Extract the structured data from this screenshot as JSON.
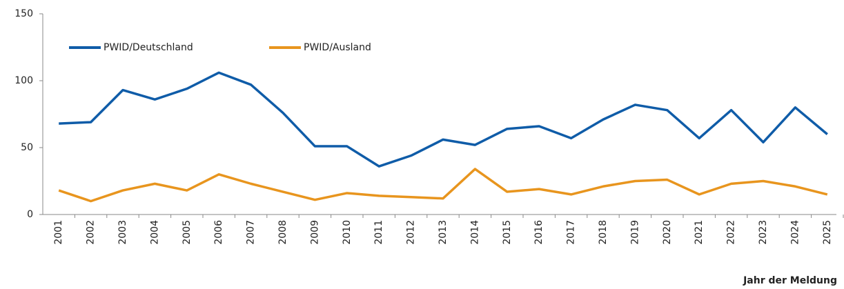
{
  "chart_data": {
    "type": "line",
    "x_label": "Jahr der Meldung",
    "categories": [
      "2001",
      "2002",
      "2003",
      "2004",
      "2005",
      "2006",
      "2007",
      "2008",
      "2009",
      "2010",
      "2011",
      "2012",
      "2013",
      "2014",
      "2015",
      "2016",
      "2017",
      "2018",
      "2019",
      "2020",
      "2021",
      "2022",
      "2023",
      "2024",
      "2025"
    ],
    "series": [
      {
        "name": "PWID/Deutschland",
        "color": "#0f5ca8",
        "values": [
          68,
          69,
          93,
          86,
          94,
          106,
          97,
          76,
          51,
          51,
          36,
          44,
          56,
          52,
          64,
          66,
          57,
          71,
          82,
          78,
          57,
          78,
          54,
          80,
          60
        ]
      },
      {
        "name": "PWID/Ausland",
        "color": "#e8951e",
        "values": [
          18,
          10,
          18,
          23,
          18,
          30,
          23,
          17,
          11,
          16,
          14,
          13,
          12,
          34,
          17,
          19,
          15,
          21,
          25,
          26,
          15,
          23,
          25,
          21,
          15
        ]
      }
    ],
    "ylim": [
      0,
      150
    ],
    "yticks": [
      0,
      50,
      100,
      150
    ],
    "grid": false,
    "legend": "top-left"
  }
}
